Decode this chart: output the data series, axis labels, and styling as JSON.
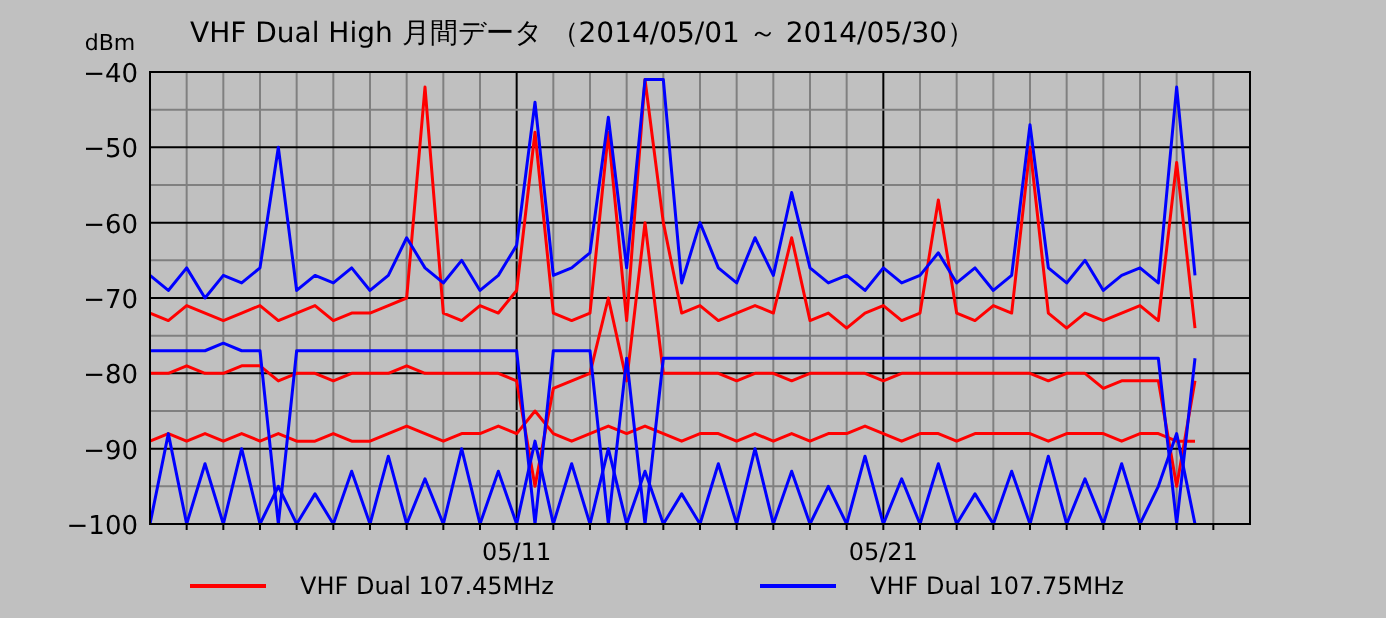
{
  "chart_data": {
    "type": "line",
    "title": "VHF Dual High  月間データ （2014/05/01 ～ 2014/05/30）",
    "ylabel": "dBm",
    "x": [
      "2014-05-01T00:00",
      "2014-05-01T12:00",
      "2014-05-02T00:00",
      "2014-05-02T12:00",
      "2014-05-03T00:00",
      "2014-05-03T12:00",
      "2014-05-04T00:00",
      "2014-05-04T12:00",
      "2014-05-05T00:00",
      "2014-05-05T12:00",
      "2014-05-06T00:00",
      "2014-05-06T12:00",
      "2014-05-07T00:00",
      "2014-05-07T12:00",
      "2014-05-08T00:00",
      "2014-05-08T12:00",
      "2014-05-09T00:00",
      "2014-05-09T12:00",
      "2014-05-10T00:00",
      "2014-05-10T12:00",
      "2014-05-11T00:00",
      "2014-05-11T12:00",
      "2014-05-12T00:00",
      "2014-05-12T12:00",
      "2014-05-13T00:00",
      "2014-05-13T12:00",
      "2014-05-14T00:00",
      "2014-05-14T12:00",
      "2014-05-15T00:00",
      "2014-05-15T12:00",
      "2014-05-16T00:00",
      "2014-05-16T12:00",
      "2014-05-17T00:00",
      "2014-05-17T12:00",
      "2014-05-18T00:00",
      "2014-05-18T12:00",
      "2014-05-19T00:00",
      "2014-05-19T12:00",
      "2014-05-20T00:00",
      "2014-05-20T12:00",
      "2014-05-21T00:00",
      "2014-05-21T12:00",
      "2014-05-22T00:00",
      "2014-05-22T12:00",
      "2014-05-23T00:00",
      "2014-05-23T12:00",
      "2014-05-24T00:00",
      "2014-05-24T12:00",
      "2014-05-25T00:00",
      "2014-05-25T12:00",
      "2014-05-26T00:00",
      "2014-05-26T12:00",
      "2014-05-27T00:00",
      "2014-05-27T12:00",
      "2014-05-28T00:00",
      "2014-05-28T12:00",
      "2014-05-29T00:00",
      "2014-05-29T12:00"
    ],
    "series": [
      {
        "name": "VHF Dual 107.45MHz",
        "color": "#ff0000",
        "values": [
          -72,
          -73,
          -71,
          -72,
          -73,
          -72,
          -71,
          -73,
          -72,
          -71,
          -73,
          -72,
          -72,
          -71,
          -70,
          -42,
          -72,
          -73,
          -71,
          -72,
          -69,
          -48,
          -72,
          -73,
          -72,
          -48,
          -73,
          -41,
          -60,
          -72,
          -71,
          -73,
          -72,
          -71,
          -72,
          -62,
          -73,
          -72,
          -74,
          -72,
          -71,
          -73,
          -72,
          -57,
          -72,
          -73,
          -71,
          -72,
          -50,
          -72,
          -74,
          -72,
          -73,
          -72,
          -71,
          -73,
          -52,
          -74
        ]
      },
      {
        "color": "#ff0000",
        "values": [
          -80,
          -80,
          -79,
          -80,
          -80,
          -79,
          -79,
          -81,
          -80,
          -80,
          -81,
          -80,
          -80,
          -80,
          -79,
          -80,
          -80,
          -80,
          -80,
          -80,
          -81,
          -95,
          -82,
          -81,
          -80,
          -70,
          -81,
          -60,
          -80,
          -80,
          -80,
          -80,
          -81,
          -80,
          -80,
          -81,
          -80,
          -80,
          -80,
          -80,
          -81,
          -80,
          -80,
          -80,
          -80,
          -80,
          -80,
          -80,
          -80,
          -81,
          -80,
          -80,
          -82,
          -81,
          -81,
          -81,
          -95,
          -81
        ]
      },
      {
        "color": "#ff0000",
        "values": [
          -89,
          -88,
          -89,
          -88,
          -89,
          -88,
          -89,
          -88,
          -89,
          -89,
          -88,
          -89,
          -89,
          -88,
          -87,
          -88,
          -89,
          -88,
          -88,
          -87,
          -88,
          -85,
          -88,
          -89,
          -88,
          -87,
          -88,
          -87,
          -88,
          -89,
          -88,
          -88,
          -89,
          -88,
          -89,
          -88,
          -89,
          -88,
          -88,
          -87,
          -88,
          -89,
          -88,
          -88,
          -89,
          -88,
          -88,
          -88,
          -88,
          -89,
          -88,
          -88,
          -88,
          -89,
          -88,
          -88,
          -89,
          -89
        ]
      },
      {
        "name": "VHF Dual 107.75MHz",
        "color": "#0000ff",
        "values": [
          -67,
          -69,
          -66,
          -70,
          -67,
          -68,
          -66,
          -50,
          -69,
          -67,
          -68,
          -66,
          -69,
          -67,
          -62,
          -66,
          -68,
          -65,
          -69,
          -67,
          -63,
          -44,
          -67,
          -66,
          -64,
          -46,
          -66,
          -41,
          -41,
          -68,
          -60,
          -66,
          -68,
          -62,
          -67,
          -56,
          -66,
          -68,
          -67,
          -69,
          -66,
          -68,
          -67,
          -64,
          -68,
          -66,
          -69,
          -67,
          -47,
          -66,
          -68,
          -65,
          -69,
          -67,
          -66,
          -68,
          -42,
          -67
        ]
      },
      {
        "color": "#0000ff",
        "values": [
          -77,
          -77,
          -77,
          -77,
          -76,
          -77,
          -77,
          -100,
          -77,
          -77,
          -77,
          -77,
          -77,
          -77,
          -77,
          -77,
          -77,
          -77,
          -77,
          -77,
          -77,
          -100,
          -77,
          -77,
          -77,
          -100,
          -78,
          -100,
          -78,
          -78,
          -78,
          -78,
          -78,
          -78,
          -78,
          -78,
          -78,
          -78,
          -78,
          -78,
          -78,
          -78,
          -78,
          -78,
          -78,
          -78,
          -78,
          -78,
          -78,
          -78,
          -78,
          -78,
          -78,
          -78,
          -78,
          -78,
          -100,
          -78
        ]
      },
      {
        "color": "#0000ff",
        "values": [
          -100,
          -88,
          -100,
          -92,
          -100,
          -90,
          -100,
          -95,
          -100,
          -96,
          -100,
          -93,
          -100,
          -91,
          -100,
          -94,
          -100,
          -90,
          -100,
          -93,
          -100,
          -89,
          -100,
          -92,
          -100,
          -90,
          -100,
          -93,
          -100,
          -96,
          -100,
          -92,
          -100,
          -90,
          -100,
          -93,
          -100,
          -95,
          -100,
          -91,
          -100,
          -94,
          -100,
          -92,
          -100,
          -96,
          -100,
          -93,
          -100,
          -91,
          -100,
          -94,
          -100,
          -92,
          -100,
          -95,
          -88,
          -100
        ]
      }
    ],
    "xlim": [
      "2014-05-01",
      "2014-05-31"
    ],
    "xticks": [
      {
        "value": "2014-05-02",
        "label": null
      },
      {
        "value": "2014-05-03",
        "label": null
      },
      {
        "value": "2014-05-04",
        "label": null
      },
      {
        "value": "2014-05-05",
        "label": null
      },
      {
        "value": "2014-05-06",
        "label": null
      },
      {
        "value": "2014-05-07",
        "label": null
      },
      {
        "value": "2014-05-08",
        "label": null
      },
      {
        "value": "2014-05-09",
        "label": null
      },
      {
        "value": "2014-05-10",
        "label": null
      },
      {
        "value": "2014-05-11",
        "label": "05/11"
      },
      {
        "value": "2014-05-12",
        "label": null
      },
      {
        "value": "2014-05-13",
        "label": null
      },
      {
        "value": "2014-05-14",
        "label": null
      },
      {
        "value": "2014-05-15",
        "label": null
      },
      {
        "value": "2014-05-16",
        "label": null
      },
      {
        "value": "2014-05-17",
        "label": null
      },
      {
        "value": "2014-05-18",
        "label": null
      },
      {
        "value": "2014-05-19",
        "label": null
      },
      {
        "value": "2014-05-20",
        "label": null
      },
      {
        "value": "2014-05-21",
        "label": "05/21"
      },
      {
        "value": "2014-05-22",
        "label": null
      },
      {
        "value": "2014-05-23",
        "label": null
      },
      {
        "value": "2014-05-24",
        "label": null
      },
      {
        "value": "2014-05-25",
        "label": null
      },
      {
        "value": "2014-05-26",
        "label": null
      },
      {
        "value": "2014-05-27",
        "label": null
      },
      {
        "value": "2014-05-28",
        "label": null
      },
      {
        "value": "2014-05-29",
        "label": null
      },
      {
        "value": "2014-05-30",
        "label": null
      }
    ],
    "ylim": [
      -100,
      -40
    ],
    "yticks": [
      -100,
      {
        "value": -95,
        "label": null
      },
      -90,
      {
        "value": -85,
        "label": null
      },
      -80,
      {
        "value": -75,
        "label": null
      },
      -70,
      {
        "value": -65,
        "label": null
      },
      -60,
      {
        "value": -55,
        "label": null
      },
      -50,
      {
        "value": -45,
        "label": null
      },
      -40
    ],
    "grid": true,
    "legend": "bottom",
    "marker": "none",
    "line_style": "solid"
  }
}
